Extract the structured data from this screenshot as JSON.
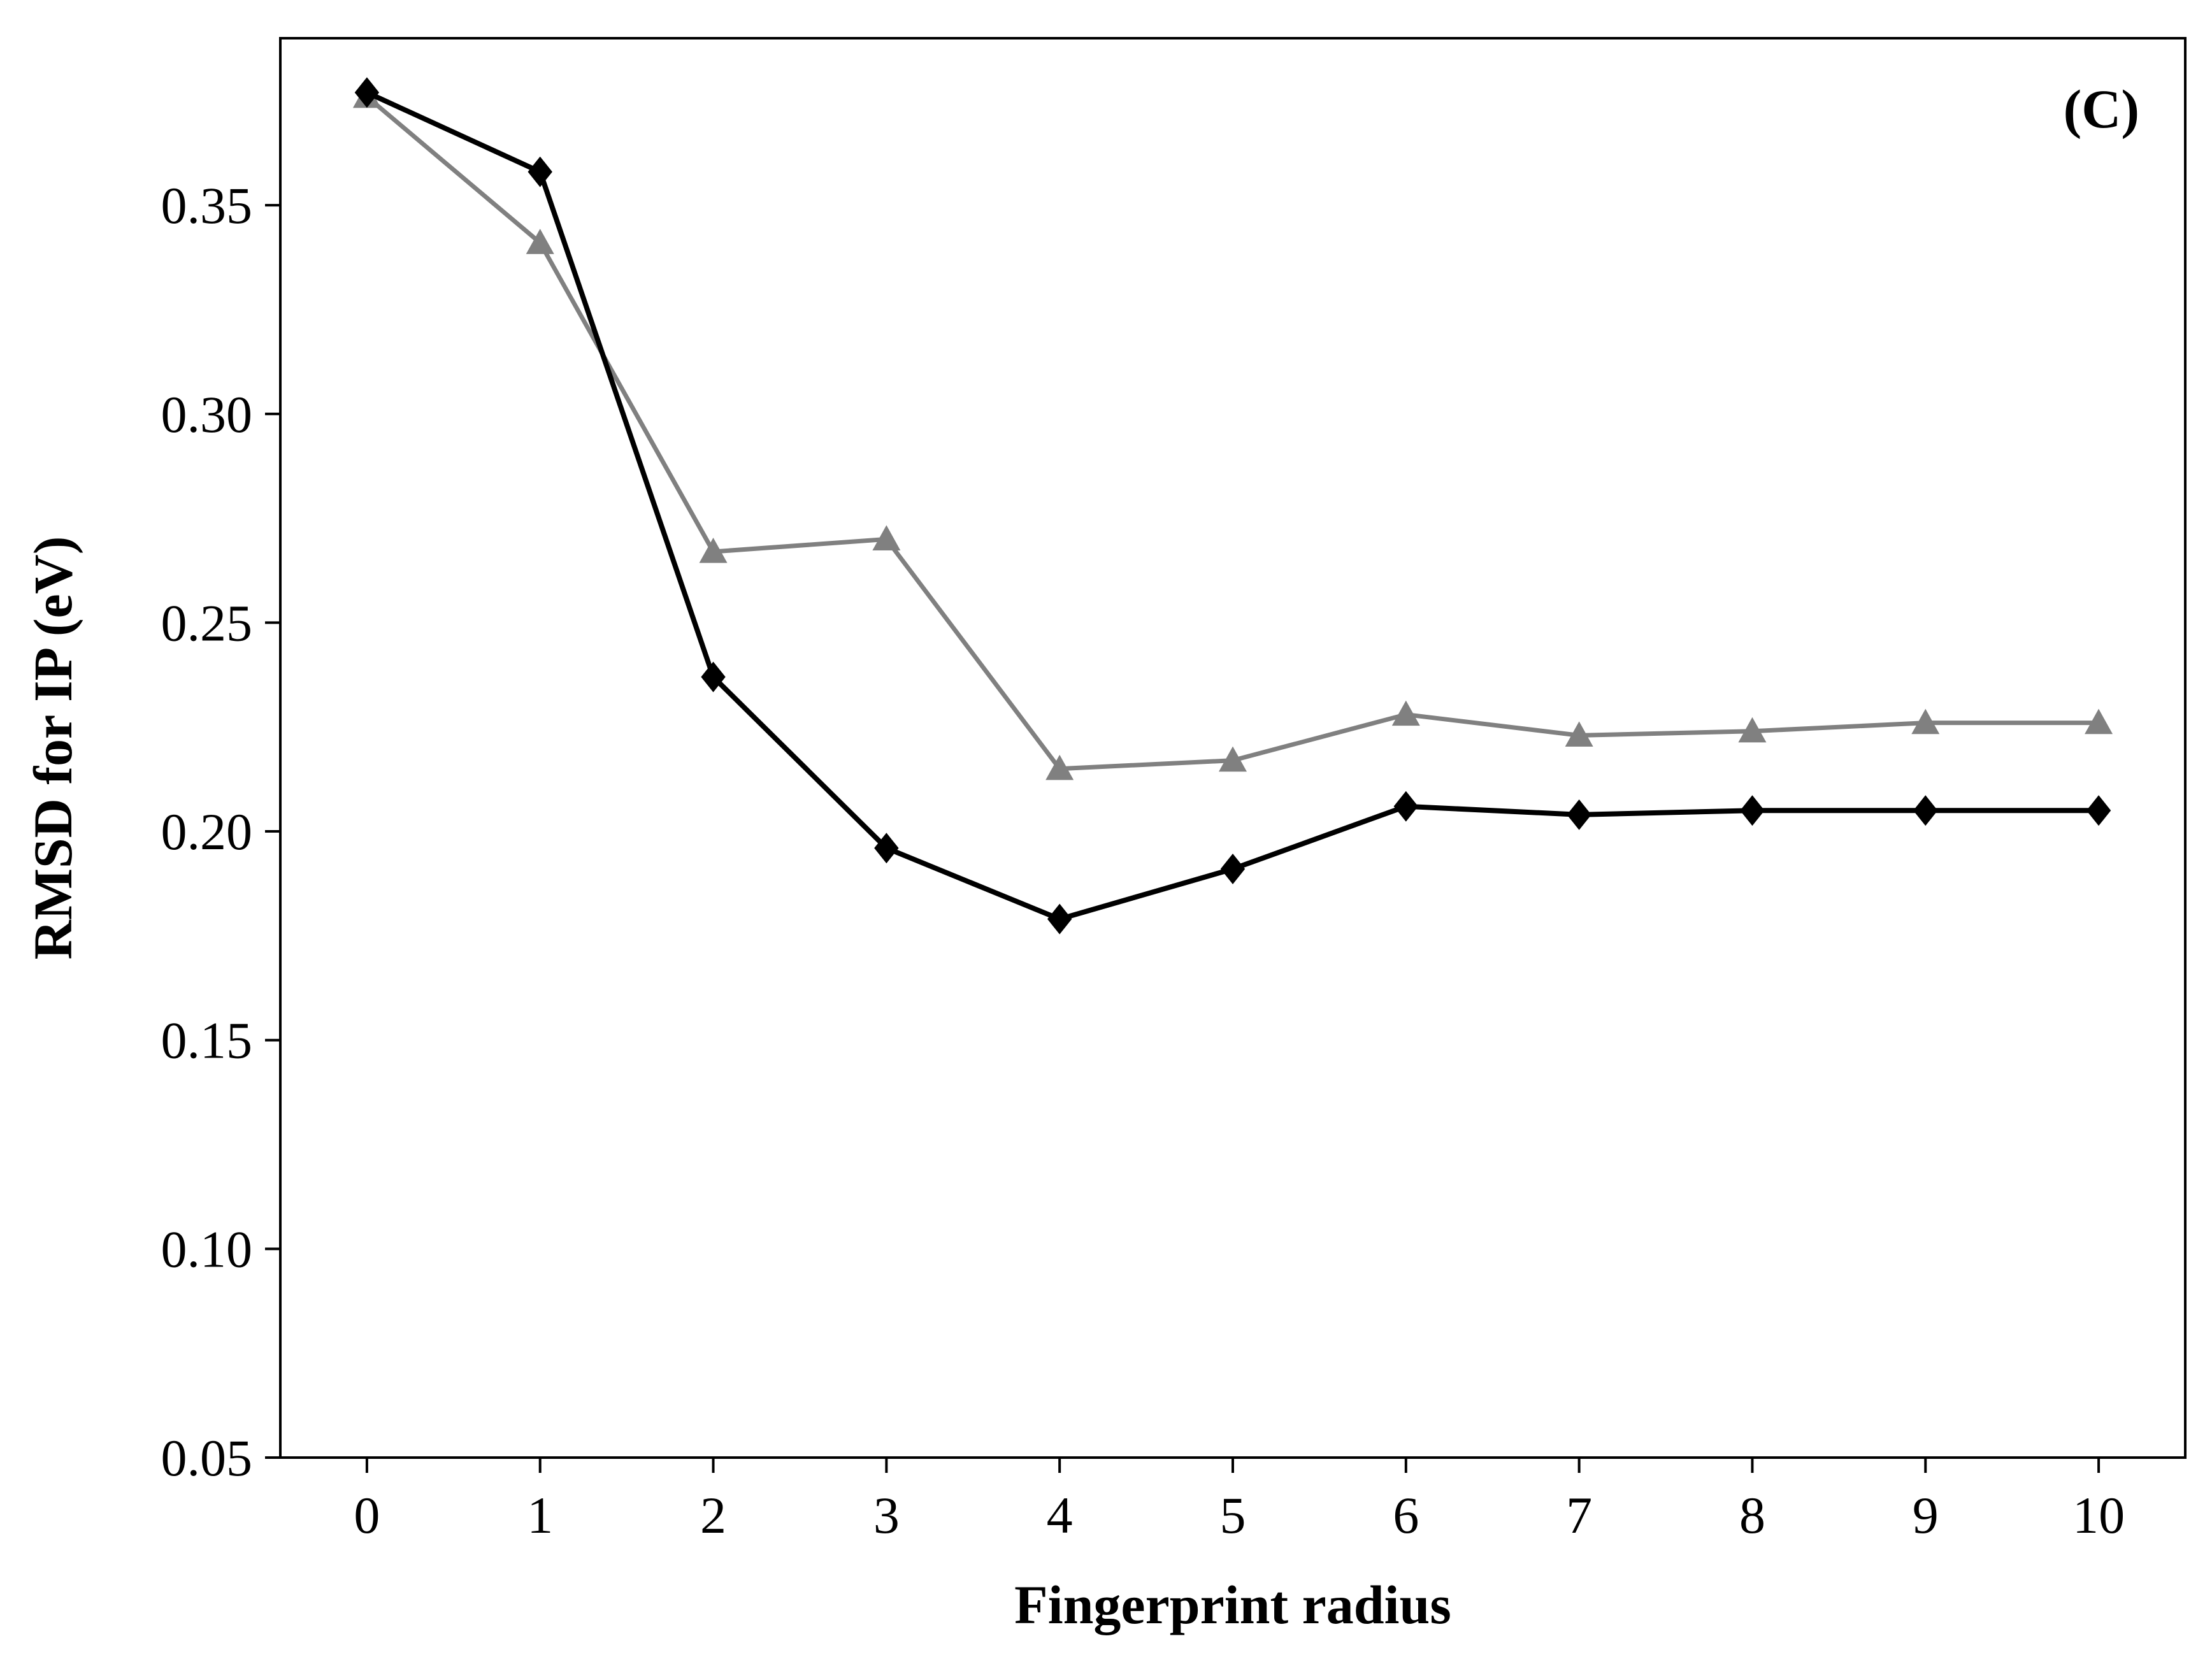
{
  "chart_data": {
    "type": "line",
    "panel_label": "(C)",
    "xlabel": "Fingerprint radius",
    "ylabel": "RMSD for IP (eV)",
    "x": [
      0,
      1,
      2,
      3,
      4,
      5,
      6,
      7,
      8,
      9,
      10
    ],
    "xlim": [
      -0.5,
      10.5
    ],
    "ylim": [
      0.05,
      0.39
    ],
    "yticks": [
      0.05,
      0.1,
      0.15,
      0.2,
      0.25,
      0.3,
      0.35
    ],
    "ytick_labels": [
      "0.05",
      "0.10",
      "0.15",
      "0.20",
      "0.25",
      "0.30",
      "0.35"
    ],
    "xtick_labels": [
      "0",
      "1",
      "2",
      "3",
      "4",
      "5",
      "6",
      "7",
      "8",
      "9",
      "10"
    ],
    "grid": false,
    "series": [
      {
        "color": "#808080",
        "marker": "triangle",
        "values": [
          0.376,
          0.341,
          0.267,
          0.27,
          0.215,
          0.217,
          0.228,
          0.223,
          0.224,
          0.226,
          0.226
        ]
      },
      {
        "color": "#000000",
        "marker": "diamond",
        "values": [
          0.377,
          0.358,
          0.237,
          0.196,
          0.179,
          0.191,
          0.206,
          0.204,
          0.205,
          0.205,
          0.205
        ]
      }
    ]
  }
}
